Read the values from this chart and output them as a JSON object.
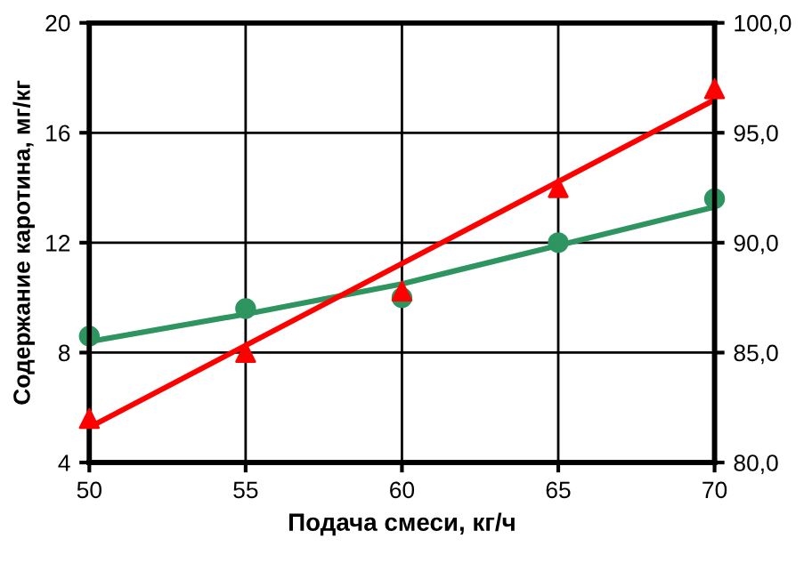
{
  "chart_data": {
    "type": "scatter",
    "xlabel": "Подача смеси, кг/ч",
    "ylabel": "Содержание каротина, мг/кг",
    "x": [
      50,
      55,
      60,
      65,
      70
    ],
    "series": [
      {
        "color": "#2e9460",
        "marker": "circle",
        "values": [
          8.6,
          9.6,
          10.0,
          12.0,
          13.6
        ]
      },
      {
        "type": "line",
        "color": "#2e9460",
        "marker": "none",
        "values": [
          8.4,
          9.4,
          10.5,
          11.9,
          13.3
        ]
      },
      {
        "color": "#ff0000",
        "marker": "triangle",
        "axis": "y2",
        "values": [
          82.0,
          85.0,
          87.8,
          92.5,
          97.0
        ]
      },
      {
        "type": "line",
        "color": "#ff0000",
        "marker": "none",
        "axis": "y2",
        "x": [
          50,
          70
        ],
        "values": [
          81.6,
          96.5
        ]
      }
    ],
    "xlim": [
      50,
      70
    ],
    "xticks": [
      50,
      55,
      60,
      65,
      70
    ],
    "ylim": [
      4,
      20
    ],
    "yticks": [
      4,
      8,
      12,
      16,
      20
    ],
    "y2lim": [
      80,
      100
    ],
    "y2ticks": [
      {
        "value": 80,
        "label": "80,0"
      },
      {
        "value": 85,
        "label": "85,0"
      },
      {
        "value": 90,
        "label": "90,0"
      },
      {
        "value": 95,
        "label": "95,0"
      },
      {
        "value": 100,
        "label": "100,0"
      }
    ],
    "grid": true
  }
}
